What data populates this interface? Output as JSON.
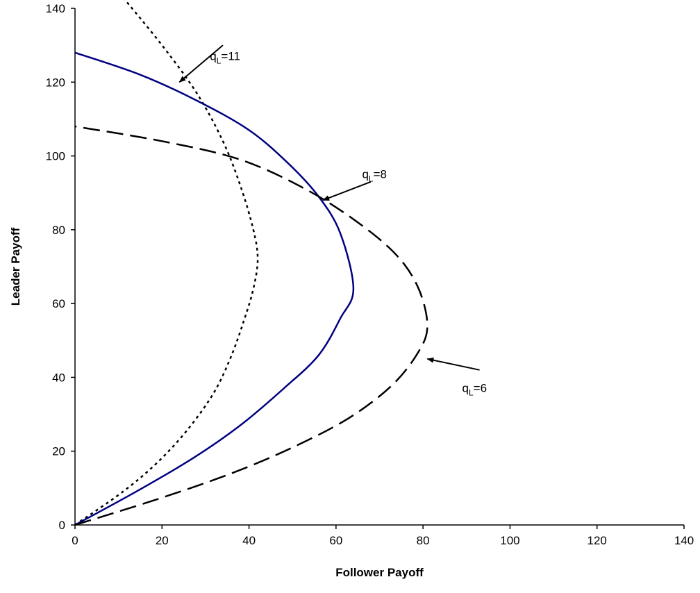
{
  "chart_data": {
    "type": "line",
    "title": "",
    "xlabel": "Follower Payoff",
    "ylabel": "Leader Payoff",
    "xlim": [
      0,
      140
    ],
    "ylim": [
      0,
      140
    ],
    "x_ticks": [
      0,
      20,
      40,
      60,
      80,
      100,
      120,
      140
    ],
    "y_ticks": [
      0,
      20,
      40,
      60,
      80,
      100,
      120,
      140
    ],
    "grid": false,
    "legend": "none",
    "series": [
      {
        "color": "#000000",
        "style": "dotted",
        "points": [
          [
            0,
            0
          ],
          [
            11,
            9
          ],
          [
            19,
            17
          ],
          [
            26,
            26
          ],
          [
            32,
            36
          ],
          [
            36,
            46
          ],
          [
            39,
            56
          ],
          [
            41,
            64
          ],
          [
            42,
            72
          ],
          [
            41,
            80
          ],
          [
            38,
            92
          ],
          [
            34,
            104
          ],
          [
            28,
            117
          ],
          [
            20,
            130
          ],
          [
            11,
            143
          ]
        ]
      },
      {
        "color": "#000080",
        "style": "solid",
        "points": [
          [
            0,
            0
          ],
          [
            14,
            9
          ],
          [
            27,
            18
          ],
          [
            38,
            27
          ],
          [
            48,
            37
          ],
          [
            56,
            46
          ],
          [
            61,
            56
          ],
          [
            64,
            64
          ],
          [
            61,
            79
          ],
          [
            56,
            89
          ],
          [
            49,
            98
          ],
          [
            40,
            107
          ],
          [
            28,
            115
          ],
          [
            15,
            122
          ],
          [
            0,
            128
          ]
        ]
      },
      {
        "color": "#000000",
        "style": "dashed",
        "points": [
          [
            0,
            0
          ],
          [
            19,
            7
          ],
          [
            36,
            14
          ],
          [
            50,
            21
          ],
          [
            63,
            29
          ],
          [
            73,
            38
          ],
          [
            79,
            47
          ],
          [
            81,
            54
          ],
          [
            79,
            64
          ],
          [
            74,
            73
          ],
          [
            65,
            82
          ],
          [
            53,
            91
          ],
          [
            38,
            99
          ],
          [
            20,
            104
          ],
          [
            0,
            108
          ]
        ]
      }
    ],
    "annotations": [
      {
        "sub": "L",
        "value": "=11",
        "at": [
          31,
          126
        ],
        "tip": [
          24,
          120
        ],
        "tail": [
          34,
          130
        ]
      },
      {
        "sub": "L",
        "value": "=8",
        "at": [
          66,
          94
        ],
        "tip": [
          57,
          88
        ],
        "tail": [
          68,
          93
        ]
      },
      {
        "sub": "L",
        "value": "=6",
        "at": [
          89,
          36
        ],
        "tip": [
          81,
          45
        ],
        "tail": [
          93,
          42
        ]
      }
    ],
    "annotation_prefix": "q"
  }
}
